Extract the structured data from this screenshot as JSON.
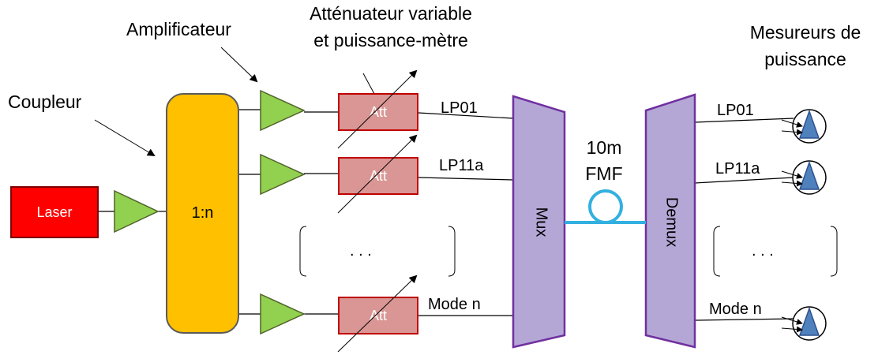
{
  "labels": {
    "coupleur": "Coupleur",
    "amplificateur": "Amplificateur",
    "attenuateur_line1": "Atténuateur variable",
    "attenuateur_line2": "et puissance-mètre",
    "mesureurs_line1": "Mesureurs de",
    "mesureurs_line2": "puissance",
    "fiber_line1": "10m",
    "fiber_line2": "FMF"
  },
  "blocks": {
    "laser": "Laser",
    "coupler": "1:n",
    "att": "Att",
    "mux": "Mux",
    "demux": "Demux",
    "ellipsis": ". . ."
  },
  "modes_in": [
    "LP01",
    "LP11a",
    "Mode n"
  ],
  "modes_out": [
    "LP01",
    "LP11a",
    "Mode n"
  ],
  "colors": {
    "laser": "#ff0000",
    "coupler": "#ffc000",
    "amplifier": "#92d050",
    "attenuator": "#d99694",
    "mux": "#b4a7d6",
    "fiber": "#33b0e0",
    "detector": "#4f81bd"
  }
}
